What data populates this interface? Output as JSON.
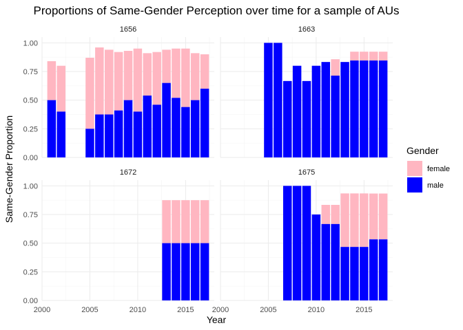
{
  "chart_data": {
    "type": "bar",
    "stacked": true,
    "title": "Proportions of Same-Gender Perception over time for a sample of AUs",
    "xlabel": "Year",
    "ylabel": "Same-Gender Proportion",
    "xlim": [
      2000,
      2018
    ],
    "ylim": [
      0,
      1.05
    ],
    "x_ticks": [
      2000,
      2005,
      2010,
      2015
    ],
    "y_ticks": [
      0,
      0.25,
      0.5,
      0.75,
      1.0
    ],
    "y_tick_labels": [
      "0.00",
      "0.25",
      "0.50",
      "0.75",
      "1.00"
    ],
    "grid": true,
    "legend": {
      "title": "Gender",
      "placement": "right",
      "entries": [
        {
          "name": "female",
          "color": "#ffb6c1"
        },
        {
          "name": "male",
          "color": "#0000ff"
        }
      ]
    },
    "panels": [
      {
        "label": "1656",
        "years": [
          2001,
          2002,
          2005,
          2006,
          2007,
          2008,
          2009,
          2010,
          2011,
          2012,
          2013,
          2014,
          2015,
          2016,
          2017
        ],
        "male": [
          0.5,
          0.4,
          0.25,
          0.375,
          0.375,
          0.41,
          0.5,
          0.4,
          0.54,
          0.46,
          0.65,
          0.52,
          0.44,
          0.5,
          0.6
        ],
        "female": [
          0.34,
          0.4,
          0.62,
          0.585,
          0.565,
          0.51,
          0.43,
          0.55,
          0.37,
          0.46,
          0.29,
          0.43,
          0.51,
          0.41,
          0.3
        ]
      },
      {
        "label": "1663",
        "years": [
          2005,
          2006,
          2007,
          2008,
          2009,
          2010,
          2011,
          2012,
          2013,
          2014,
          2015,
          2016,
          2017
        ],
        "male": [
          1.0,
          1.0,
          0.667,
          0.8,
          0.667,
          0.8,
          0.833,
          0.714,
          0.833,
          0.846,
          0.846,
          0.846,
          0.846
        ],
        "female": [
          0,
          0,
          0,
          0,
          0,
          0,
          0,
          0.143,
          0,
          0.077,
          0.077,
          0.077,
          0.077
        ]
      },
      {
        "label": "1672",
        "years": [
          2013,
          2014,
          2015,
          2016,
          2017
        ],
        "male": [
          0.5,
          0.5,
          0.5,
          0.5,
          0.5
        ],
        "female": [
          0.375,
          0.375,
          0.375,
          0.375,
          0.375
        ]
      },
      {
        "label": "1675",
        "years": [
          2007,
          2008,
          2009,
          2010,
          2011,
          2012,
          2013,
          2014,
          2015,
          2016,
          2017
        ],
        "male": [
          1.0,
          1.0,
          1.0,
          0.75,
          0.667,
          0.667,
          0.467,
          0.467,
          0.467,
          0.533,
          0.533
        ],
        "female": [
          0,
          0,
          0,
          0,
          0.167,
          0.167,
          0.467,
          0.467,
          0.467,
          0.4,
          0.4
        ]
      }
    ]
  },
  "colors": {
    "female": "#ffb6c1",
    "male": "#0000ff",
    "grid_major": "#ebebeb",
    "grid_minor": "#f4f4f4"
  }
}
